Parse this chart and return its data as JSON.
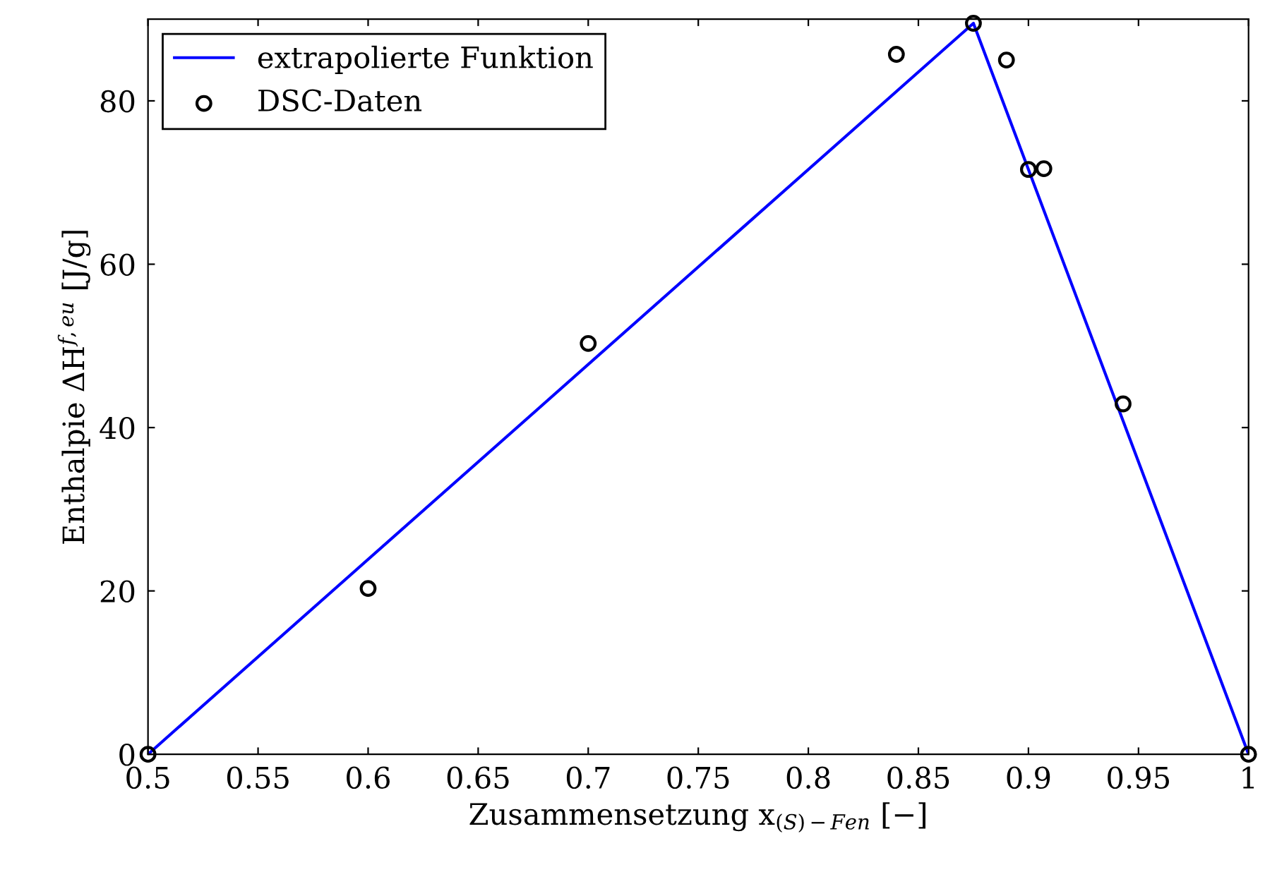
{
  "chart_data": {
    "type": "line",
    "xlabel": "Zusammensetzung x$_{(S)−Fen}$ [−]",
    "ylabel": "Enthalpie ΔH$^{f,eu}$ [J/g]",
    "xlim": [
      0.5,
      1
    ],
    "ylim": [
      0,
      90
    ],
    "xticks": [
      0.5,
      0.55,
      0.6,
      0.65,
      0.7,
      0.75,
      0.8,
      0.85,
      0.9,
      0.95,
      1
    ],
    "yticks": [
      0,
      20,
      40,
      60,
      80
    ],
    "grid": false,
    "legend": "top left",
    "series": [
      {
        "name": "extrapolierte Funktion",
        "color": "#0000ff",
        "marker": "none",
        "line_style": "solid",
        "x": [
          0.5,
          0.875,
          1
        ],
        "values": [
          0,
          89.5,
          0
        ]
      },
      {
        "name": "DSC-Daten",
        "type": "scatter",
        "color": "#000000",
        "marker": "circle",
        "x": [
          0.5,
          0.6,
          0.7,
          0.84,
          0.875,
          0.89,
          0.9,
          0.907,
          0.943,
          1
        ],
        "values": [
          0,
          20.3,
          50.3,
          85.7,
          89.5,
          85.0,
          71.6,
          71.7,
          42.9,
          0
        ]
      }
    ]
  }
}
